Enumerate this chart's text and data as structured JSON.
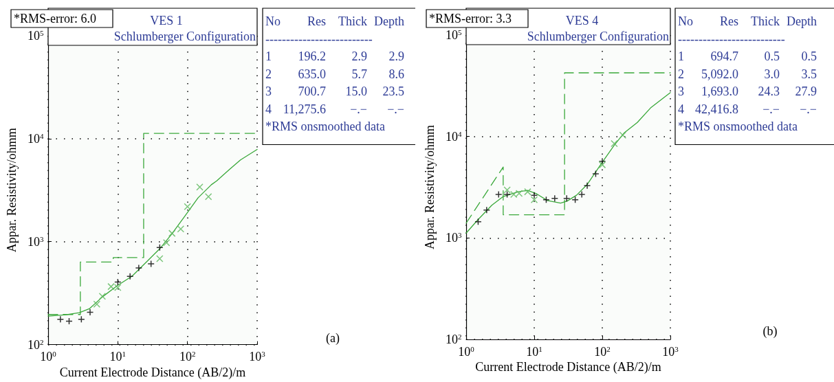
{
  "chart_data": [
    {
      "type": "line",
      "title": "VES 1",
      "subtitle": "Schlumberger Configuration",
      "xlabel": "Current Electrode Distance (AB/2)/m",
      "ylabel": "Appar. Resistivity/ohmm",
      "log": "xy",
      "grid": true,
      "xlim": [
        1,
        1000
      ],
      "ylim": [
        100,
        100000
      ],
      "xticks": [
        {
          "value": 1,
          "label": "10$^{0}$"
        },
        {
          "value": 10,
          "label": "10$^{1}$"
        },
        {
          "value": 100,
          "label": "10$^{2}$"
        },
        {
          "value": 1000,
          "label": "10$^{3}$"
        }
      ],
      "yticks": [
        {
          "value": 100,
          "label": "10$^{2}$"
        },
        {
          "value": 1000,
          "label": "10$^{3}$"
        },
        {
          "value": 10000,
          "label": "10$^{4}$"
        },
        {
          "value": 100000,
          "label": "10$^{5}$"
        }
      ],
      "series": [
        {
          "type": "line",
          "color": "#3aa83a",
          "marker": "none",
          "line_style": "solid",
          "x": [
            1,
            1.8,
            2.8,
            3.9,
            6.1,
            10,
            16,
            27,
            40,
            59,
            92,
            142,
            220,
            263,
            407,
            577,
            1000
          ],
          "values": [
            189,
            195,
            204,
            223,
            293,
            377,
            462,
            656,
            853,
            1178,
            1774,
            2667,
            3573,
            3899,
            5078,
            6226,
            7870
          ]
        },
        {
          "type": "line",
          "color": "#3aa83a",
          "marker": "none",
          "line_style": "dashed",
          "x": [
            1,
            2.9,
            2.9,
            8.6,
            8.6,
            23.5,
            23.5,
            1000
          ],
          "values": [
            196.2,
            196.2,
            635,
            635,
            700.7,
            700.7,
            11275.6,
            11275.6
          ]
        },
        {
          "type": "scatter",
          "color": "#000000",
          "marker": "plus",
          "x": [
            1.5,
            2,
            3,
            4,
            10,
            15,
            20,
            30,
            40
          ],
          "values": [
            176,
            169,
            176,
            206,
            406,
            460,
            555,
            608,
            879
          ]
        },
        {
          "type": "scatter",
          "color": "#5cb85c",
          "marker": "cross",
          "x": [
            5,
            6,
            8,
            10,
            40,
            50,
            60,
            80,
            100,
            150,
            200
          ],
          "values": [
            247,
            295,
            366,
            359,
            684,
            977,
            1205,
            1330,
            2188,
            3388,
            2735
          ]
        }
      ],
      "annotations": [
        "*RMS-error: 6.0",
        "No Res Thick Depth",
        "--------------------------",
        "1 196.2 2.9 2.9",
        "2 635.0 5.7 8.6",
        "3 700.7 15.0 23.5",
        "4 11,275.6 −.− −.−",
        "*RMS onsmoothed data",
        "(a)"
      ]
    },
    {
      "type": "line",
      "title": "VES 4",
      "subtitle": "Schlumberger Configuration",
      "xlabel": "Current Electrode Distance (AB/2)/m",
      "ylabel": "Appar. Resistivity/ohmm",
      "log": "xy",
      "grid": true,
      "xlim": [
        1,
        1000
      ],
      "ylim": [
        100,
        100000
      ],
      "xticks": [
        {
          "value": 1,
          "label": "10$^{0}$"
        },
        {
          "value": 10,
          "label": "10$^{1}$"
        },
        {
          "value": 100,
          "label": "10$^{2}$"
        },
        {
          "value": 1000,
          "label": "10$^{3}$"
        }
      ],
      "yticks": [
        {
          "value": 100,
          "label": "10$^{2}$"
        },
        {
          "value": 1000,
          "label": "10$^{3}$"
        },
        {
          "value": 10000,
          "label": "10$^{4}$"
        },
        {
          "value": 100000,
          "label": "10$^{5}$"
        }
      ],
      "series": [
        {
          "type": "line",
          "color": "#3aa83a",
          "marker": "none",
          "line_style": "solid",
          "x": [
            1,
            1.46,
            2.38,
            3.5,
            5.8,
            8,
            10.9,
            15.6,
            24.4,
            30.5,
            41.8,
            59.7,
            100,
            151,
            209,
            327,
            512,
            1000
          ],
          "values": [
            1117,
            1489,
            2098,
            2559,
            2851,
            2938,
            2719,
            2339,
            2203,
            2310,
            2637,
            3350,
            5584,
            8262,
            10820,
            13740,
            19130,
            27100
          ]
        },
        {
          "type": "line",
          "color": "#3aa83a",
          "marker": "none",
          "line_style": "dashed",
          "x": [
            1,
            3.5,
            3.5,
            27.9,
            27.9,
            1000
          ],
          "values": [
            1400,
            5000,
            1693,
            1693,
            42416.8,
            42416.8
          ]
        },
        {
          "type": "scatter",
          "color": "#000000",
          "marker": "plus",
          "x": [
            1.5,
            2,
            3,
            4,
            10,
            15,
            20,
            30,
            40,
            50,
            60,
            80,
            100
          ],
          "values": [
            1445,
            1883,
            2686,
            2686,
            2637,
            2381,
            2455,
            2455,
            2381,
            2686,
            3273,
            4288,
            5689
          ]
        },
        {
          "type": "scatter",
          "color": "#5cb85c",
          "marker": "cross",
          "x": [
            4,
            5,
            6,
            8,
            10,
            100,
            150,
            200
          ],
          "values": [
            2972,
            2686,
            2749,
            2851,
            2381,
            5260,
            8511,
            10300
          ]
        }
      ],
      "annotations": [
        "*RMS-error: 3.3",
        "No Res Thick Depth",
        "--------------------------",
        "1 694.7 0.5 0.5",
        "2 5,092.0 3.0 3.5",
        "3 1,693.0 24.3 27.9",
        "4 42,416.8 −.− −.−",
        "*RMS onsmoothed data",
        "(b)"
      ]
    }
  ]
}
